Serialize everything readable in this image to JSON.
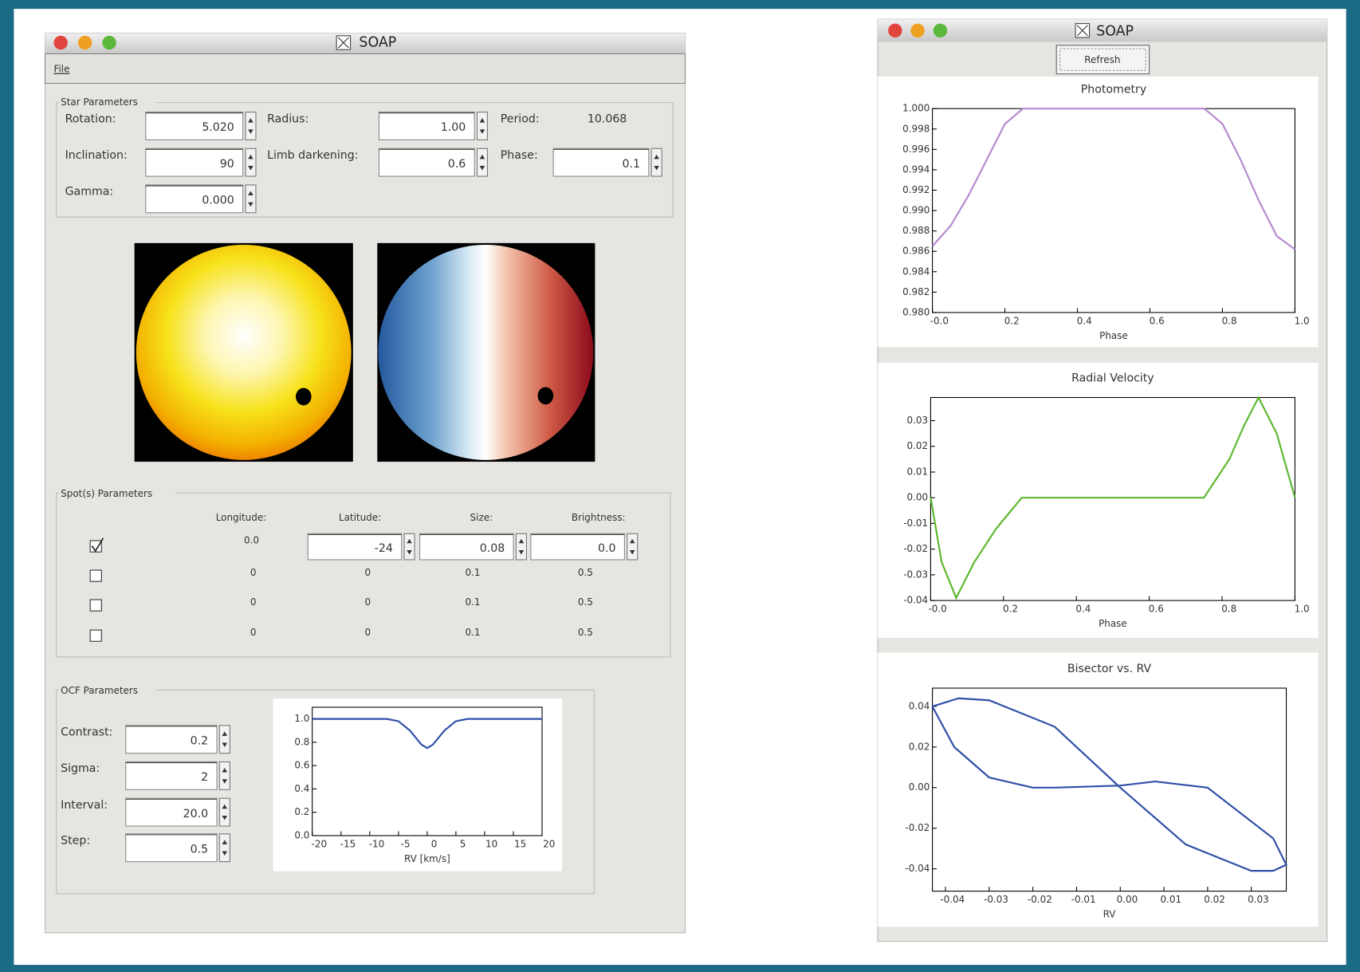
{
  "left_window": {
    "title": "SOAP",
    "menu": [
      "File"
    ],
    "star_parameters": {
      "title": "Star Parameters",
      "fields": [
        {
          "label": "Rotation:",
          "value": "5.020"
        },
        {
          "label": "Radius:",
          "value": "1.00"
        },
        {
          "label": "Period:",
          "value": "10.068"
        },
        {
          "label": "Inclination:",
          "value": "90"
        },
        {
          "label": "Limb darkening:",
          "value": "0.6"
        },
        {
          "label": "Phase:",
          "value": "0.1"
        },
        {
          "label": "Gamma:",
          "value": "0.000"
        }
      ]
    },
    "spot_parameters": {
      "title": "Spot(s) Parameters",
      "headers": [
        "Longitude:",
        "Latitude:",
        "Size:",
        "Brightness:"
      ],
      "rows": [
        {
          "checked": true,
          "cells": [
            "0.0",
            "-24",
            "0.08",
            "0.0"
          ]
        },
        {
          "checked": false,
          "cells": [
            "0",
            "0",
            "0.1",
            "0.5"
          ]
        },
        {
          "checked": false,
          "cells": [
            "0",
            "0",
            "0.1",
            "0.5"
          ]
        },
        {
          "checked": false,
          "cells": [
            "0",
            "0",
            "0.1",
            "0.5"
          ]
        }
      ]
    },
    "ocf_parameters": {
      "title": "OCF Parameters",
      "fields": [
        {
          "label": "Contrast:",
          "value": "0.2"
        },
        {
          "label": "Sigma:",
          "value": "2"
        },
        {
          "label": "Interval:",
          "value": "20.0"
        },
        {
          "label": "Step:",
          "value": "0.5"
        }
      ]
    },
    "ccf_chart": {
      "type": "line",
      "xlabel": "RV [km/s]",
      "x": [
        -20,
        -7,
        -5,
        -3,
        -1,
        0,
        1,
        3,
        5,
        7,
        20
      ],
      "values": [
        1.0,
        1.0,
        0.98,
        0.9,
        0.78,
        0.75,
        0.78,
        0.9,
        0.98,
        1.0,
        1.0
      ],
      "color": "#2f4fa8",
      "xlim": [
        -20,
        20
      ],
      "ylim": [
        0,
        1.1
      ],
      "xticks": [
        -20,
        -15,
        -10,
        -5,
        0,
        5,
        10,
        15,
        20
      ],
      "yticks": [
        {
          "value": 0,
          "label": "0.0"
        },
        0.2,
        0.4,
        0.6,
        0.8,
        {
          "value": 1,
          "label": "1.0"
        }
      ]
    }
  },
  "right_window": {
    "title": "SOAP",
    "button": "Refresh",
    "charts": [
      {
        "type": "line",
        "title": "Photometry",
        "xlabel": "Phase",
        "x": [
          0,
          0.05,
          0.1,
          0.15,
          0.2,
          0.25,
          0.75,
          0.8,
          0.85,
          0.9,
          0.95,
          1.0
        ],
        "values": [
          0.9865,
          0.9885,
          0.9915,
          0.995,
          0.9985,
          1.0,
          1.0,
          0.9985,
          0.995,
          0.991,
          0.9875,
          0.9862
        ],
        "color": "#b48ad0",
        "xlim": [
          0,
          1
        ],
        "ylim": [
          0.98,
          1.0
        ],
        "xticks": [
          {
            "value": 0,
            "label": "-0.0"
          },
          0.2,
          0.4,
          0.6,
          0.8,
          {
            "value": 1,
            "label": "1.0"
          }
        ],
        "yticks": [
          {
            "value": 1.0,
            "label": "1.000"
          },
          {
            "value": 0.998,
            "label": "0.998"
          },
          {
            "value": 0.996,
            "label": "0.996"
          },
          {
            "value": 0.994,
            "label": "0.994"
          },
          {
            "value": 0.992,
            "label": "0.992"
          },
          {
            "value": 0.99,
            "label": "0.990"
          },
          {
            "value": 0.988,
            "label": "0.988"
          },
          {
            "value": 0.986,
            "label": "0.986"
          },
          {
            "value": 0.984,
            "label": "0.984"
          },
          {
            "value": 0.982,
            "label": "0.982"
          },
          {
            "value": 0.98,
            "label": "0.980"
          }
        ]
      },
      {
        "type": "line",
        "title": "Radial Velocity",
        "xlabel": "Phase",
        "x": [
          0,
          0.03,
          0.07,
          0.12,
          0.18,
          0.25,
          0.75,
          0.82,
          0.86,
          0.9,
          0.95,
          1.0
        ],
        "values": [
          0.0,
          -0.025,
          -0.039,
          -0.025,
          -0.012,
          0.0,
          0.0,
          0.015,
          0.028,
          0.039,
          0.025,
          0.0
        ],
        "color": "#5cb82e",
        "xlim": [
          0,
          1
        ],
        "ylim": [
          -0.04,
          0.039
        ],
        "xticks": [
          {
            "value": 0,
            "label": "-0.0"
          },
          0.2,
          0.4,
          0.6,
          0.8,
          {
            "value": 1,
            "label": "1.0"
          }
        ],
        "yticks": [
          0.03,
          0.02,
          0.01,
          {
            "value": 0,
            "label": "0.00"
          },
          -0.01,
          -0.02,
          -0.03,
          -0.04
        ]
      },
      {
        "type": "line",
        "title": "Bisector vs. RV",
        "xlabel": "RV",
        "x": [
          -0.043,
          -0.037,
          -0.03,
          -0.015,
          0,
          0.015,
          0.03,
          0.035,
          0.038,
          0.035,
          0.02,
          0.008,
          0,
          -0.015,
          -0.02,
          -0.03,
          -0.038,
          -0.043
        ],
        "values": [
          0.04,
          0.044,
          0.043,
          0.03,
          0.0,
          -0.028,
          -0.041,
          -0.041,
          -0.038,
          -0.025,
          0.0,
          0.003,
          0.001,
          0.0,
          0.0,
          0.005,
          0.02,
          0.04
        ],
        "color": "#2f4fa8",
        "xlim": [
          -0.043,
          0.038
        ],
        "ylim": [
          -0.051,
          0.049
        ],
        "xticks": [
          -0.04,
          -0.03,
          -0.02,
          -0.01,
          {
            "value": 0,
            "label": "0.00"
          },
          0.01,
          0.02,
          0.03
        ],
        "yticks": [
          0.04,
          0.02,
          {
            "value": 0,
            "label": "0.00"
          },
          -0.02,
          -0.04
        ]
      }
    ]
  }
}
